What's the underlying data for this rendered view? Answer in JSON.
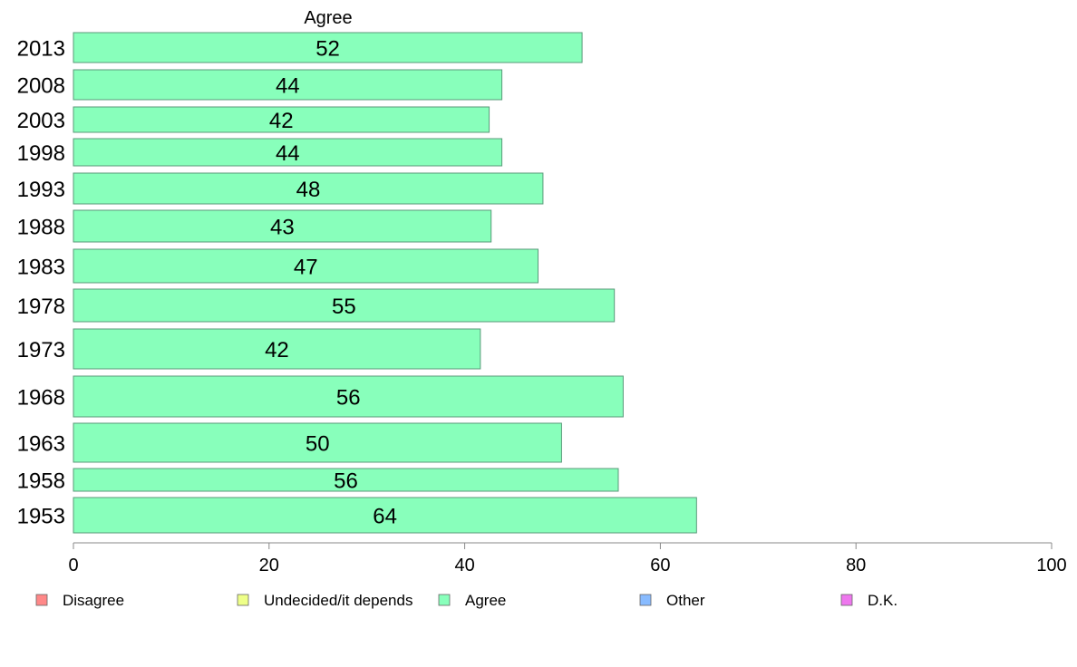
{
  "chart_data": {
    "type": "bar",
    "orientation": "horizontal",
    "series_title": "Agree",
    "categories": [
      "2013",
      "2008",
      "2003",
      "1998",
      "1993",
      "1988",
      "1983",
      "1978",
      "1973",
      "1968",
      "1963",
      "1958",
      "1953"
    ],
    "series": [
      {
        "name": "Agree",
        "color": "#88ffbb",
        "values": [
          52,
          44,
          42,
          44,
          48,
          43,
          47,
          55,
          42,
          56,
          50,
          56,
          64
        ],
        "plotted": [
          52.0,
          43.8,
          42.5,
          43.8,
          48.0,
          42.7,
          47.5,
          55.3,
          41.6,
          56.2,
          49.9,
          55.7,
          63.7
        ]
      }
    ],
    "xlim": [
      0,
      100
    ],
    "xticks": [
      "0",
      "20",
      "40",
      "60",
      "80",
      "100"
    ],
    "grid": false,
    "legend_position": "bottom",
    "legend": [
      {
        "label": "Disagree",
        "color": "#ff8888"
      },
      {
        "label": "Undecided/it depends",
        "color": "#eeff88"
      },
      {
        "label": "Agree",
        "color": "#88ffbb"
      },
      {
        "label": "Other",
        "color": "#88bbff"
      },
      {
        "label": "D.K.",
        "color": "#ee77ee"
      }
    ]
  }
}
